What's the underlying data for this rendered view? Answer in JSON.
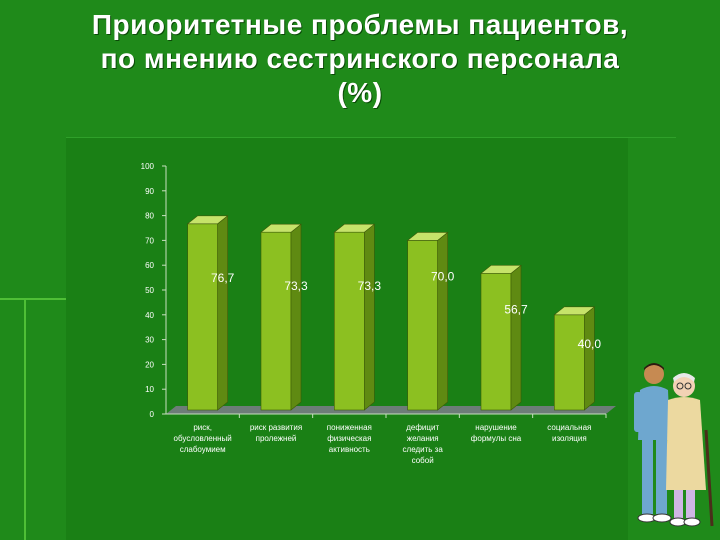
{
  "title": {
    "line1": "Приоритетные проблемы пациентов,",
    "line2": "по мнению  сестринского персонала",
    "line3": "(%)"
  },
  "colors": {
    "background": "#1f8a1a",
    "bar_front": "#8cc021",
    "bar_side": "#5f8a12",
    "bar_top": "#c6e36a",
    "floor": "#6d7d78",
    "text": "#ffffff"
  },
  "chart_data": {
    "type": "bar",
    "categories": [
      [
        "риск,",
        "обусловленный",
        "слабоумием"
      ],
      [
        "риск развития",
        "пролежней"
      ],
      [
        "пониженная",
        "физическая",
        "активность"
      ],
      [
        "дефицит",
        "желания",
        "следить за",
        "собой"
      ],
      [
        "нарушение",
        "формулы сна"
      ],
      [
        "социальная",
        "изоляция"
      ]
    ],
    "values": [
      76.7,
      73.3,
      73.3,
      70.0,
      56.7,
      40.0
    ],
    "data_labels": [
      "76,7",
      "73,3",
      "73,3",
      "70,0",
      "56,7",
      "40,0"
    ],
    "yticks": [
      0,
      10,
      20,
      30,
      40,
      50,
      60,
      70,
      80,
      90,
      100
    ],
    "ylim": [
      0,
      100
    ],
    "grid": false,
    "legend": "none"
  }
}
